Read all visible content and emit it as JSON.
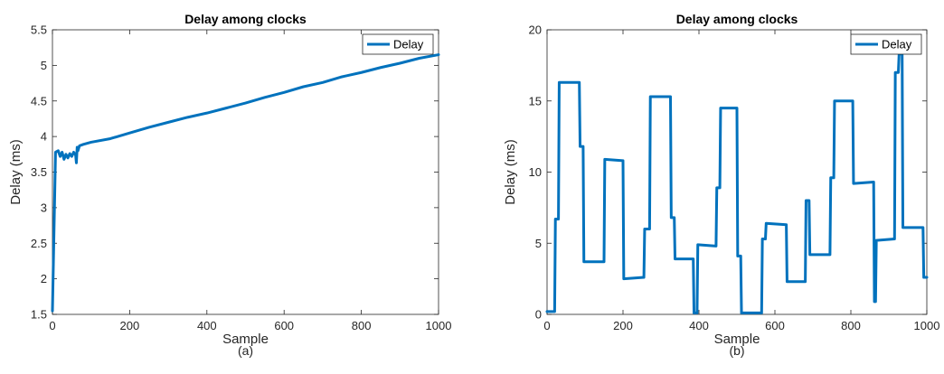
{
  "chart_data": [
    {
      "type": "line",
      "title": "Delay among clocks",
      "xlabel": "Sample",
      "ylabel": "Delay (ms)",
      "caption": "(a)",
      "xlim": [
        0,
        1000
      ],
      "ylim": [
        1.5,
        5.5
      ],
      "xticks": [
        0,
        200,
        400,
        600,
        800,
        1000
      ],
      "yticks": [
        1.5,
        2,
        2.5,
        3,
        3.5,
        4,
        4.5,
        5,
        5.5
      ],
      "legend": {
        "position": "top-right",
        "entries": [
          "Delay"
        ]
      },
      "color": "#0072BD",
      "series": [
        {
          "name": "Delay",
          "x": [
            0,
            8,
            15,
            20,
            25,
            30,
            35,
            40,
            45,
            50,
            55,
            60,
            62,
            64,
            66,
            70,
            80,
            100,
            150,
            200,
            250,
            300,
            350,
            400,
            450,
            500,
            550,
            600,
            650,
            700,
            750,
            800,
            850,
            900,
            950,
            1000
          ],
          "values": [
            1.55,
            3.78,
            3.8,
            3.72,
            3.78,
            3.68,
            3.75,
            3.7,
            3.76,
            3.72,
            3.78,
            3.74,
            3.63,
            3.85,
            3.8,
            3.87,
            3.89,
            3.92,
            3.97,
            4.05,
            4.13,
            4.2,
            4.27,
            4.33,
            4.4,
            4.47,
            4.55,
            4.62,
            4.7,
            4.76,
            4.84,
            4.9,
            4.97,
            5.03,
            5.1,
            5.15
          ]
        }
      ]
    },
    {
      "type": "line",
      "title": "Delay among clocks",
      "xlabel": "Sample",
      "ylabel": "Delay (ms)",
      "caption": "(b)",
      "xlim": [
        0,
        1000
      ],
      "ylim": [
        0,
        20
      ],
      "xticks": [
        0,
        200,
        400,
        600,
        800,
        1000
      ],
      "yticks": [
        0,
        5,
        10,
        15,
        20
      ],
      "legend": {
        "position": "top-right",
        "entries": [
          "Delay"
        ]
      },
      "color": "#0072BD",
      "series": [
        {
          "name": "Delay",
          "x": [
            0,
            20,
            22,
            30,
            32,
            85,
            87,
            95,
            97,
            150,
            152,
            200,
            202,
            255,
            257,
            270,
            272,
            325,
            327,
            335,
            337,
            385,
            387,
            395,
            397,
            445,
            447,
            455,
            457,
            500,
            502,
            510,
            512,
            565,
            567,
            575,
            577,
            630,
            632,
            680,
            682,
            690,
            692,
            745,
            747,
            755,
            757,
            805,
            807,
            860,
            862,
            865,
            867,
            915,
            917,
            925,
            927,
            935,
            937,
            990,
            992,
            1000
          ],
          "values": [
            0.2,
            0.2,
            6.7,
            6.7,
            16.3,
            16.3,
            11.8,
            11.8,
            3.7,
            3.7,
            10.9,
            10.8,
            2.5,
            2.6,
            6.0,
            6.0,
            15.3,
            15.3,
            6.8,
            6.8,
            3.9,
            3.9,
            0.1,
            0.1,
            4.9,
            4.8,
            8.9,
            8.9,
            14.5,
            14.5,
            4.1,
            4.1,
            0.1,
            0.1,
            5.3,
            5.3,
            6.4,
            6.3,
            2.3,
            2.3,
            8.0,
            8.0,
            4.2,
            4.2,
            9.6,
            9.6,
            15.0,
            15.0,
            9.2,
            9.3,
            0.9,
            0.9,
            5.2,
            5.3,
            17.0,
            17.0,
            18.3,
            18.3,
            6.1,
            6.1,
            2.6,
            2.6
          ]
        }
      ]
    }
  ]
}
